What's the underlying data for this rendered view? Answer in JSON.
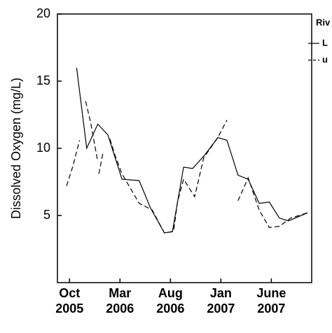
{
  "chart_data": {
    "type": "line",
    "y_label": "Dissolved Oxygen (mg/L)",
    "legend_title": "Riv",
    "x": null,
    "xlim": [
      -1.2,
      24
    ],
    "xticks": [
      {
        "value": 0,
        "label": "Oct\n2005"
      },
      {
        "value": 5,
        "label": "Mar\n2006"
      },
      {
        "value": 10,
        "label": "Aug\n2006"
      },
      {
        "value": 15,
        "label": "Jan\n2007"
      },
      {
        "value": 20,
        "label": "June\n2007"
      }
    ],
    "ylim": [
      0,
      20
    ],
    "yticks": [
      5,
      10,
      15,
      20
    ],
    "grid": false,
    "series": [
      {
        "name": "L",
        "color": "#000000",
        "dash": false,
        "x": [
          0.7,
          1.7,
          2.8,
          3.8,
          4.9,
          5.2,
          6.9,
          8.0,
          9.4,
          10.2,
          11.3,
          12.2,
          13.4,
          14.7,
          15.6,
          16.7,
          17.7,
          18.8,
          19.8,
          20.8,
          21.7,
          23.6
        ],
        "values": [
          16,
          10,
          11.8,
          11,
          8.4,
          7.7,
          7.6,
          5.6,
          3.7,
          3.8,
          8.6,
          8.5,
          9.5,
          10.8,
          10.6,
          8,
          7.7,
          5.9,
          6,
          4.8,
          4.6,
          5.2
        ]
      },
      {
        "name": "u",
        "color": "#000000",
        "dash": true,
        "x": [
          -0.3,
          0.3,
          1.0,
          1.3,
          1.6,
          2.1,
          2.8,
          2.85,
          2.9,
          3.3,
          3.6,
          4.0,
          4.5,
          5.2,
          6.9,
          8.2,
          9.4,
          10.3,
          10.7,
          11.3,
          12.4,
          13.3,
          14.7,
          15.6,
          16.2,
          16.7,
          17.7,
          18.8,
          19.8,
          20.8,
          21.9,
          23.6
        ],
        "values": [
          7.2,
          8.6,
          10.6,
          null,
          13.5,
          11.9,
          9.0,
          null,
          8.1,
          9.6,
          null,
          10.7,
          9.5,
          8.1,
          5.9,
          5.4,
          3.7,
          3.8,
          6.0,
          7.7,
          6.4,
          9.3,
          10.8,
          12.1,
          null,
          6.1,
          7.8,
          5.4,
          4.1,
          4.2,
          4.8,
          5.2
        ]
      }
    ]
  }
}
